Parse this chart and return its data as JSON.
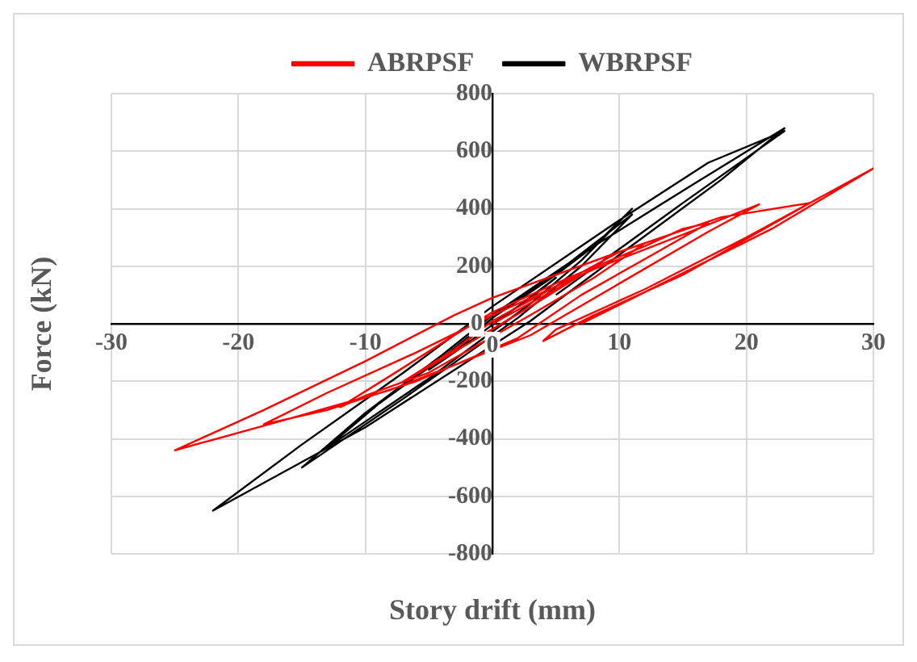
{
  "chart_data": {
    "type": "line",
    "xlabel": "Story drift (mm)",
    "ylabel": "Force (kN)",
    "xlim": [
      -30,
      30
    ],
    "xticks": [
      -30,
      -20,
      -10,
      0,
      10,
      20,
      30
    ],
    "ylim": [
      -800,
      800
    ],
    "yticks": [
      -800,
      -600,
      -400,
      -200,
      0,
      200,
      400,
      600,
      800
    ],
    "grid": true,
    "legend": "top",
    "marker": "none",
    "line_style": "solid",
    "series": [
      {
        "name": "ABRPSF",
        "color": "#ff0000",
        "x": [
          0,
          5,
          7,
          3,
          -5,
          -7,
          -3,
          0,
          5,
          10,
          12,
          8,
          3,
          -5,
          -10,
          -12,
          -8,
          -3,
          0,
          6,
          12,
          15,
          17,
          13,
          7,
          2,
          -6,
          -13,
          -18,
          -13,
          -6,
          0,
          8,
          15,
          21,
          17,
          10,
          3,
          -8,
          -16,
          -25,
          -18,
          -10,
          -3,
          0,
          10,
          18,
          25,
          15,
          8,
          4,
          5,
          12,
          20,
          30,
          22,
          12,
          7
        ],
        "values": [
          0,
          120,
          170,
          60,
          -150,
          -200,
          -90,
          10,
          130,
          250,
          280,
          160,
          30,
          -170,
          -250,
          -290,
          -180,
          -40,
          40,
          160,
          270,
          330,
          350,
          250,
          100,
          -50,
          -200,
          -300,
          -350,
          -240,
          -100,
          30,
          190,
          310,
          415,
          320,
          140,
          -40,
          -230,
          -330,
          -440,
          -300,
          -130,
          30,
          90,
          250,
          370,
          420,
          170,
          30,
          -60,
          -20,
          120,
          300,
          540,
          330,
          110,
          0
        ]
      },
      {
        "name": "WBRPSF",
        "color": "#000000",
        "x": [
          0,
          3,
          5,
          2,
          -3,
          -5,
          -2,
          0,
          5,
          8,
          11,
          7,
          3,
          -5,
          -10,
          -13,
          -9,
          -4,
          0,
          6,
          11,
          7,
          2,
          -7,
          -15,
          -10,
          -4,
          0,
          8,
          16,
          23,
          18,
          10,
          3,
          -10,
          -22,
          -15,
          -7,
          0,
          10,
          17,
          23,
          15,
          5
        ],
        "values": [
          0,
          90,
          160,
          60,
          -100,
          -160,
          -60,
          20,
          170,
          270,
          400,
          220,
          70,
          -190,
          -340,
          -430,
          -280,
          -120,
          20,
          210,
          380,
          200,
          20,
          -260,
          -500,
          -310,
          -110,
          30,
          270,
          490,
          680,
          500,
          240,
          10,
          -360,
          -650,
          -420,
          -170,
          60,
          360,
          560,
          670,
          420,
          100
        ]
      }
    ]
  }
}
